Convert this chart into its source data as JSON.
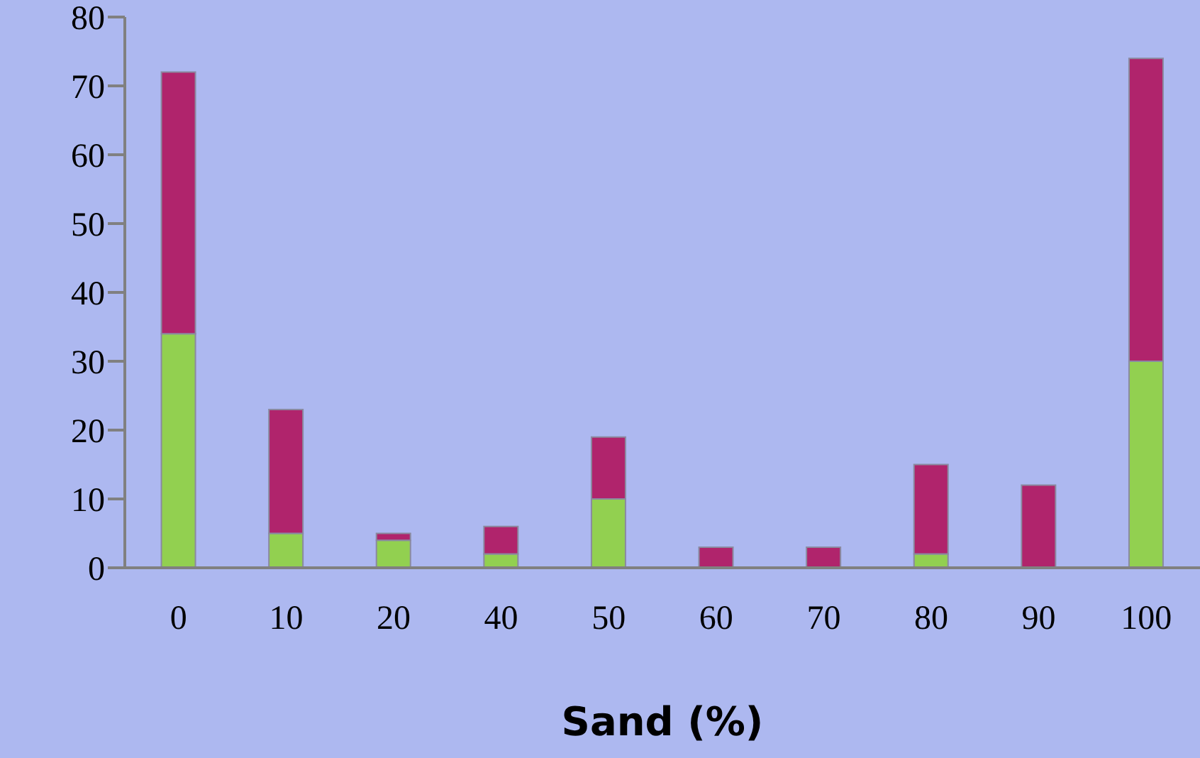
{
  "chart_data": {
    "type": "bar",
    "xlabel": "Sand (%)",
    "categories": [
      "0",
      "10",
      "20",
      "40",
      "50",
      "60",
      "70",
      "80",
      "90",
      "100"
    ],
    "stacked": true,
    "series": [
      {
        "color": "#92d050",
        "values": [
          34,
          5,
          4,
          2,
          10,
          0,
          0,
          2,
          0,
          30
        ]
      },
      {
        "color": "#b0246c",
        "values": [
          38,
          18,
          1,
          4,
          9,
          3,
          3,
          13,
          12,
          44
        ]
      }
    ],
    "ylim": [
      0,
      80
    ],
    "yticks": [
      0,
      10,
      20,
      30,
      40,
      50,
      60,
      70,
      80
    ],
    "grid": false,
    "legend": false
  }
}
